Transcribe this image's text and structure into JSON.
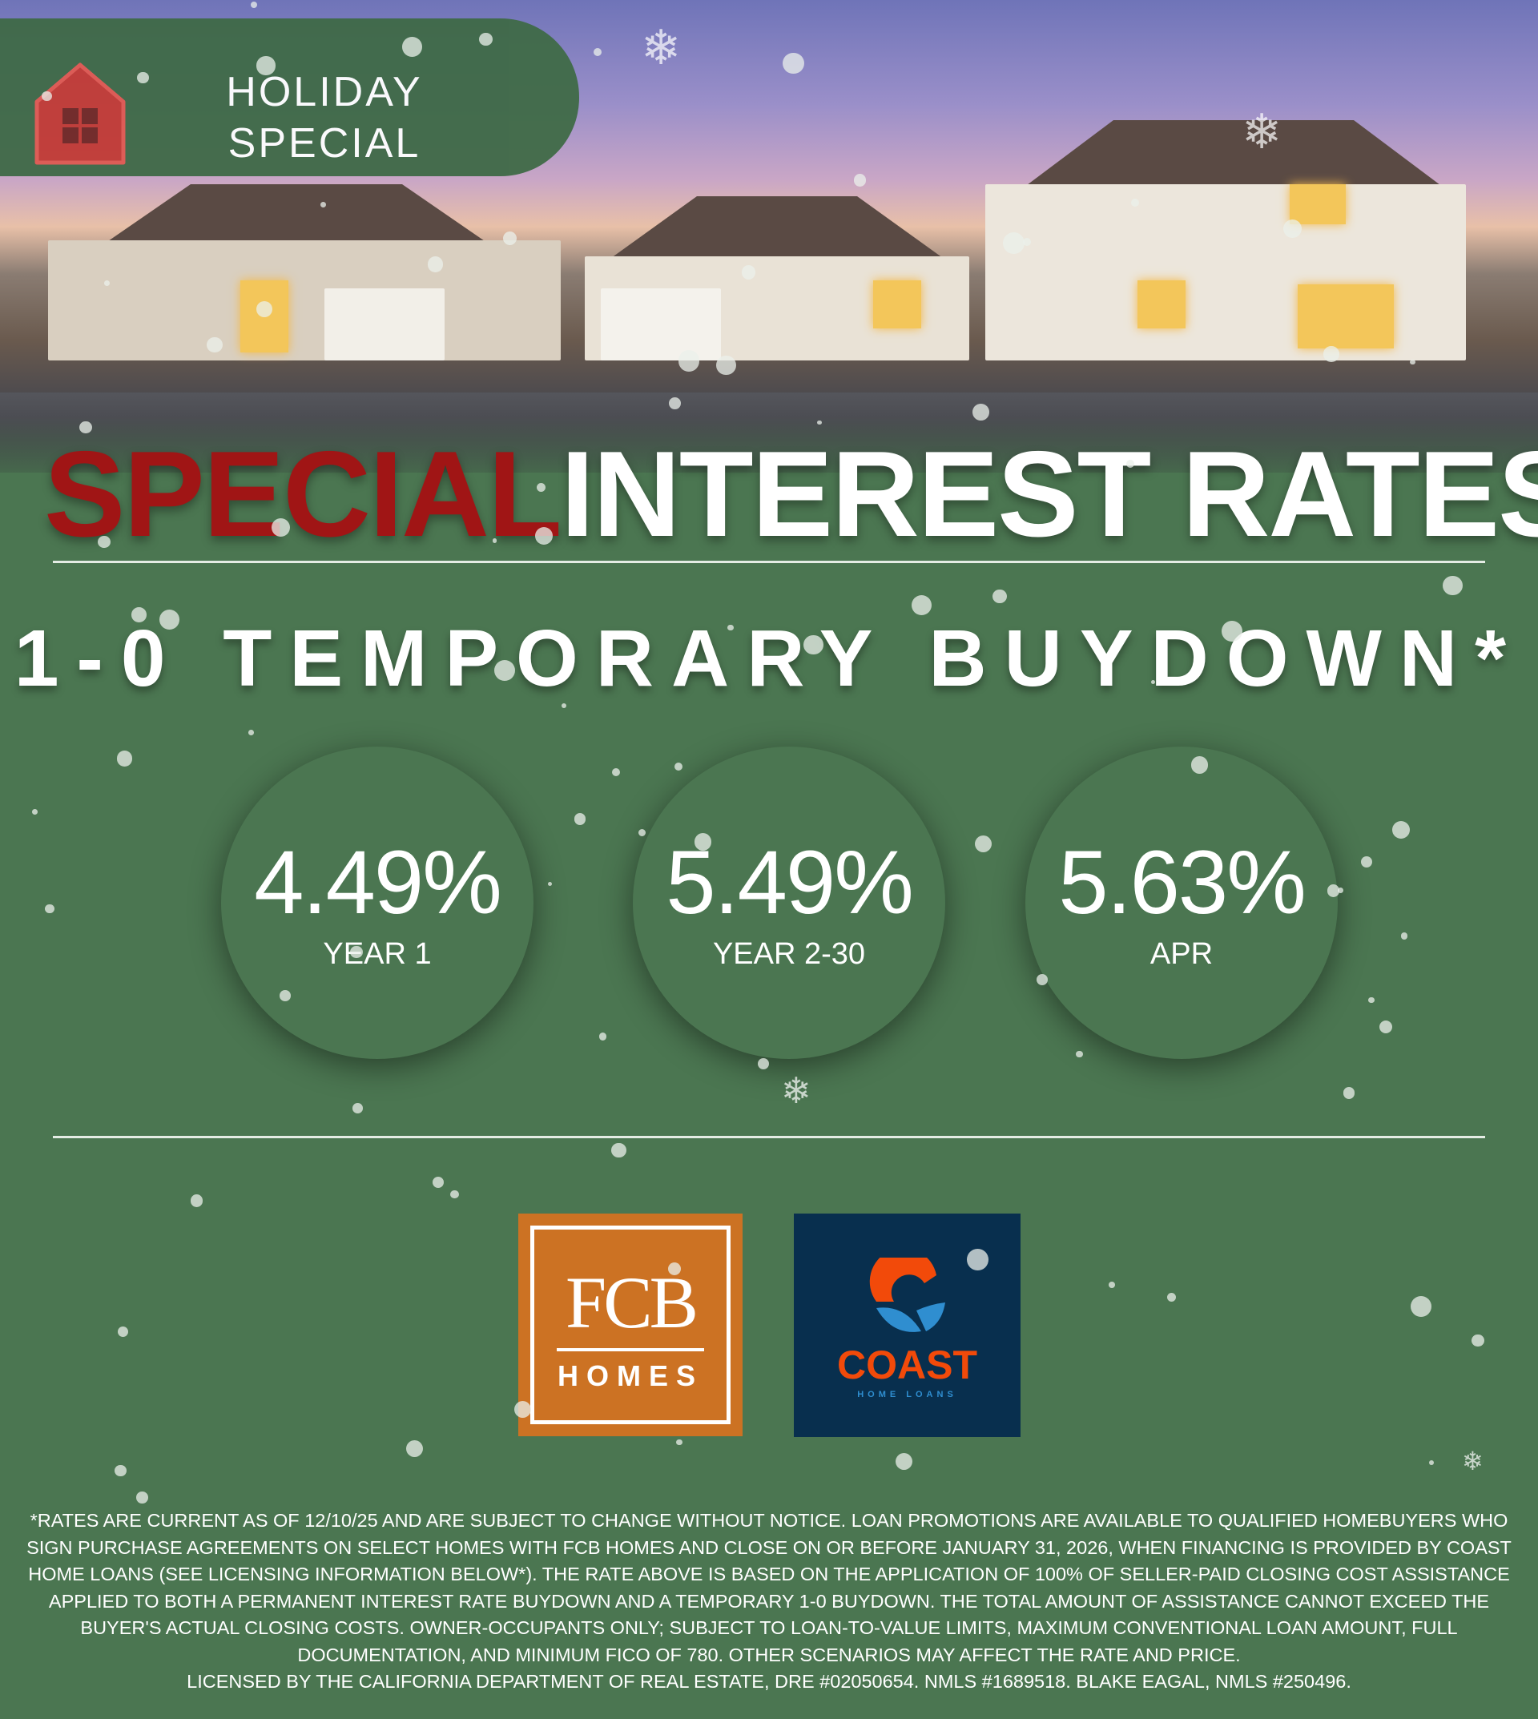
{
  "header": {
    "badge_line1": "HOLIDAY",
    "badge_line2": "SPECIAL",
    "badge_icon": "house-icon"
  },
  "title": {
    "highlight": "SPECIAL",
    "rest": "INTEREST RATES",
    "highlight_color": "#a01515"
  },
  "subtitle": "1-0 TEMPORARY BUYDOWN*",
  "rates": [
    {
      "value": "4.49%",
      "label": "YEAR 1"
    },
    {
      "value": "5.49%",
      "label": "YEAR 2-30"
    },
    {
      "value": "5.63%",
      "label": "APR"
    }
  ],
  "logos": {
    "fcb": {
      "main": "FCB",
      "sub": "HOMES",
      "color": "#cc7223"
    },
    "coast": {
      "name": "COAST",
      "sub": "HOME LOANS",
      "color": "#082f4e"
    }
  },
  "disclaimer": {
    "body": "*RATES ARE CURRENT AS OF 12/10/25 AND ARE SUBJECT TO CHANGE WITHOUT NOTICE. LOAN PROMOTIONS ARE AVAILABLE TO QUALIFIED HOMEBUYERS WHO SIGN PURCHASE AGREEMENTS ON SELECT HOMES WITH FCB HOMES AND CLOSE ON OR BEFORE JANUARY 31, 2026, WHEN FINANCING IS PROVIDED BY COAST HOME LOANS (SEE LICENSING INFORMATION BELOW*). THE RATE ABOVE IS BASED ON THE APPLICATION OF 100% OF SELLER-PAID CLOSING COST ASSISTANCE APPLIED TO BOTH A PERMANENT INTEREST RATE BUYDOWN AND A TEMPORARY 1-0 BUYDOWN. THE TOTAL AMOUNT OF ASSISTANCE CANNOT EXCEED THE BUYER'S ACTUAL CLOSING COSTS. OWNER-OCCUPANTS ONLY; SUBJECT TO LOAN-TO-VALUE LIMITS, MAXIMUM CONVENTIONAL LOAN AMOUNT, FULL DOCUMENTATION, AND MINIMUM FICO OF 780. OTHER SCENARIOS MAY AFFECT THE RATE AND PRICE.",
    "license": "LICENSED BY THE CALIFORNIA DEPARTMENT OF REAL ESTATE, DRE #02050654. NMLS #1689518. BLAKE EAGAL, NMLS #250496."
  },
  "colors": {
    "background": "#4b7651",
    "badge": "#3f6a47"
  }
}
